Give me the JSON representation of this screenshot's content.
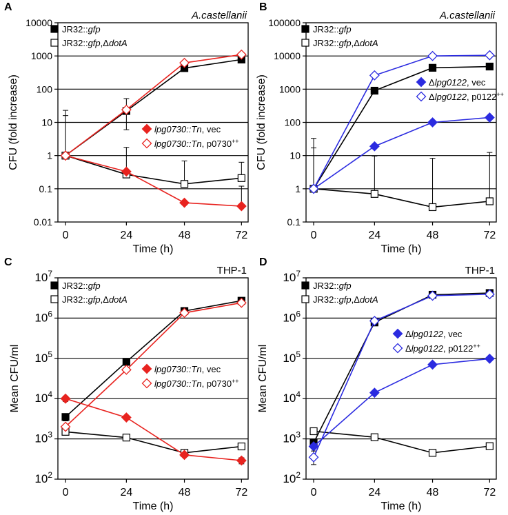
{
  "figure": {
    "description_note": ""
  },
  "chart_data": [
    {
      "type": "line",
      "panel_letter": "A",
      "title": "A.castellanii",
      "xlabel": "Time (h)",
      "ylabel": "CFU (fold increase)",
      "yscale": "log",
      "ylim": [
        0.01,
        10000
      ],
      "x": [
        0,
        24,
        48,
        72
      ],
      "xtick_labels": [
        "0",
        "24",
        "48",
        "72"
      ],
      "ytick_labels": [
        {
          "value": 0.01,
          "text": "0.01"
        },
        {
          "value": 0.1,
          "text": "0.1"
        },
        {
          "value": 1,
          "text": "1"
        },
        {
          "value": 10,
          "text": "10"
        },
        {
          "value": 100,
          "text": "100"
        },
        {
          "value": 1000,
          "text": "1000"
        },
        {
          "value": 10000,
          "text": "10000"
        }
      ],
      "grid_lines": [
        0.1,
        1,
        10,
        100,
        1000
      ],
      "series": [
        {
          "name_parts": [
            {
              "t": "JR32::"
            },
            {
              "t": "gfp",
              "i": true
            }
          ],
          "color": "#000000",
          "marker": "square-filled",
          "values": [
            1,
            22,
            430,
            780
          ],
          "err_up": [
            0,
            30,
            0,
            0
          ],
          "err_down": [
            0,
            16,
            0,
            0
          ]
        },
        {
          "name_parts": [
            {
              "t": "JR32::"
            },
            {
              "t": "gfp",
              "i": true
            },
            {
              "t": ",Δ"
            },
            {
              "t": "dotA",
              "i": true
            }
          ],
          "color": "#000000",
          "marker": "square-open",
          "values": [
            1,
            0.27,
            0.14,
            0.21
          ],
          "err_up": [
            22,
            1.5,
            0.55,
            0.42
          ],
          "err_down": [
            0,
            0,
            0,
            0
          ]
        },
        {
          "name_parts": [
            {
              "t": "lpg0730::Tn",
              "i": true
            },
            {
              "t": ", vec"
            }
          ],
          "color": "#e8231f",
          "marker": "diamond-filled",
          "values": [
            1,
            0.33,
            0.038,
            0.03
          ],
          "err_up": [
            15,
            0,
            0,
            0.09
          ],
          "err_down": [
            0,
            0,
            0,
            0
          ]
        },
        {
          "name_parts": [
            {
              "t": "lpg0730::Tn",
              "i": true
            },
            {
              "t": ", p0730"
            },
            {
              "t": "++",
              "sup": true
            }
          ],
          "color": "#e8231f",
          "marker": "diamond-open",
          "values": [
            1,
            24,
            620,
            1100
          ],
          "err_up": [
            0,
            0,
            0,
            0
          ],
          "err_down": [
            0,
            0,
            0,
            0
          ]
        }
      ]
    },
    {
      "type": "line",
      "panel_letter": "B",
      "title": "A.castellanii",
      "xlabel": "Time (h)",
      "ylabel": "CFU (fold increase)",
      "yscale": "log",
      "ylim": [
        0.1,
        100000
      ],
      "x": [
        0,
        24,
        48,
        72
      ],
      "xtick_labels": [
        "0",
        "24",
        "48",
        "72"
      ],
      "ytick_labels": [
        {
          "value": 0.1,
          "text": "0.1"
        },
        {
          "value": 1,
          "text": "1"
        },
        {
          "value": 10,
          "text": "10"
        },
        {
          "value": 100,
          "text": "100"
        },
        {
          "value": 1000,
          "text": "1000"
        },
        {
          "value": 10000,
          "text": "10000"
        },
        {
          "value": 100000,
          "text": "100000"
        }
      ],
      "grid_lines": [
        1,
        10,
        100,
        1000,
        10000
      ],
      "series": [
        {
          "name_parts": [
            {
              "t": "JR32::"
            },
            {
              "t": "gfp",
              "i": true
            }
          ],
          "color": "#000000",
          "marker": "square-filled",
          "values": [
            1,
            900,
            4400,
            4800
          ],
          "err_up": [
            0,
            0,
            0,
            0
          ],
          "err_down": [
            0,
            0,
            0,
            0
          ]
        },
        {
          "name_parts": [
            {
              "t": "JR32::"
            },
            {
              "t": "gfp",
              "i": true
            },
            {
              "t": ",Δ"
            },
            {
              "t": "dotA",
              "i": true
            }
          ],
          "color": "#000000",
          "marker": "square-open",
          "values": [
            1,
            0.7,
            0.28,
            0.42
          ],
          "err_up": [
            32,
            9,
            8,
            12
          ],
          "err_down": [
            0,
            0,
            0,
            0
          ]
        },
        {
          "name_parts": [
            {
              "t": "Δ"
            },
            {
              "t": "lpg0122",
              "i": true
            },
            {
              "t": ", vec"
            }
          ],
          "color": "#2b2be0",
          "marker": "diamond-filled",
          "values": [
            1,
            19,
            100,
            140
          ],
          "err_up": [
            16,
            0,
            0,
            0
          ],
          "err_down": [
            0,
            0,
            0,
            0
          ]
        },
        {
          "name_parts": [
            {
              "t": "Δ"
            },
            {
              "t": "lpg0122",
              "i": true
            },
            {
              "t": ", p0122"
            },
            {
              "t": "++",
              "sup": true
            }
          ],
          "color": "#2b2be0",
          "marker": "diamond-open",
          "values": [
            1,
            2600,
            10000,
            10500
          ],
          "err_up": [
            0,
            0,
            0,
            0
          ],
          "err_down": [
            0,
            0,
            0,
            0
          ]
        }
      ]
    },
    {
      "type": "line",
      "panel_letter": "C",
      "title": "THP-1",
      "xlabel": "Time (h)",
      "ylabel": "Mean CFU/ml",
      "yscale": "log",
      "ylim": [
        100,
        10000000
      ],
      "x": [
        0,
        24,
        48,
        72
      ],
      "xtick_labels": [
        "0",
        "24",
        "48",
        "72"
      ],
      "ytick_labels": [
        {
          "value": 100,
          "base": "10",
          "exp": "2"
        },
        {
          "value": 1000,
          "base": "10",
          "exp": "3"
        },
        {
          "value": 10000,
          "base": "10",
          "exp": "4"
        },
        {
          "value": 100000,
          "base": "10",
          "exp": "5"
        },
        {
          "value": 1000000,
          "base": "10",
          "exp": "6"
        },
        {
          "value": 10000000,
          "base": "10",
          "exp": "7"
        }
      ],
      "grid_lines": [
        1000,
        10000,
        100000,
        1000000
      ],
      "series": [
        {
          "name_parts": [
            {
              "t": "JR32::"
            },
            {
              "t": "gfp",
              "i": true
            }
          ],
          "color": "#000000",
          "marker": "square-filled",
          "values": [
            3500,
            82000,
            1500000,
            2700000
          ],
          "err_up": [
            700,
            0,
            0,
            0
          ],
          "err_down": [
            700,
            0,
            0,
            0
          ]
        },
        {
          "name_parts": [
            {
              "t": "JR32::"
            },
            {
              "t": "gfp",
              "i": true
            },
            {
              "t": ",Δ"
            },
            {
              "t": "dotA",
              "i": true
            }
          ],
          "color": "#000000",
          "marker": "square-open",
          "values": [
            1500,
            1080,
            450,
            650
          ],
          "err_up": [
            0,
            0,
            0,
            0
          ],
          "err_down": [
            0,
            0,
            0,
            0
          ]
        },
        {
          "name_parts": [
            {
              "t": "lpg0730::Tn",
              "i": true
            },
            {
              "t": ", vec"
            }
          ],
          "color": "#e8231f",
          "marker": "diamond-filled",
          "values": [
            10000,
            3400,
            400,
            290
          ],
          "err_up": [
            1500,
            0,
            0,
            50
          ],
          "err_down": [
            1500,
            0,
            0,
            50
          ]
        },
        {
          "name_parts": [
            {
              "t": "lpg0730::Tn",
              "i": true
            },
            {
              "t": ", p0730"
            },
            {
              "t": "++",
              "sup": true
            }
          ],
          "color": "#e8231f",
          "marker": "diamond-open",
          "values": [
            2000,
            52000,
            1350000,
            2400000
          ],
          "err_up": [
            0,
            0,
            0,
            0
          ],
          "err_down": [
            0,
            0,
            0,
            0
          ]
        }
      ]
    },
    {
      "type": "line",
      "panel_letter": "D",
      "title": "THP-1",
      "xlabel": "Time (h)",
      "ylabel": "Mean CFU/ml",
      "yscale": "log",
      "ylim": [
        100,
        10000000
      ],
      "x": [
        0,
        24,
        48,
        72
      ],
      "xtick_labels": [
        "0",
        "24",
        "48",
        "72"
      ],
      "ytick_labels": [
        {
          "value": 100,
          "base": "10",
          "exp": "2"
        },
        {
          "value": 1000,
          "base": "10",
          "exp": "3"
        },
        {
          "value": 10000,
          "base": "10",
          "exp": "4"
        },
        {
          "value": 100000,
          "base": "10",
          "exp": "5"
        },
        {
          "value": 1000000,
          "base": "10",
          "exp": "6"
        },
        {
          "value": 10000000,
          "base": "10",
          "exp": "7"
        }
      ],
      "grid_lines": [
        1000,
        10000,
        100000,
        1000000
      ],
      "series": [
        {
          "name_parts": [
            {
              "t": "JR32::"
            },
            {
              "t": "gfp",
              "i": true
            }
          ],
          "color": "#000000",
          "marker": "square-filled",
          "values": [
            800,
            780000,
            3800000,
            4200000
          ],
          "err_up": [
            200,
            0,
            0,
            0
          ],
          "err_down": [
            200,
            0,
            0,
            0
          ]
        },
        {
          "name_parts": [
            {
              "t": "JR32::"
            },
            {
              "t": "gfp",
              "i": true
            },
            {
              "t": ",Δ"
            },
            {
              "t": "dotA",
              "i": true
            }
          ],
          "color": "#000000",
          "marker": "square-open",
          "values": [
            1550,
            1100,
            450,
            660
          ],
          "err_up": [
            0,
            0,
            0,
            0
          ],
          "err_down": [
            0,
            0,
            0,
            0
          ]
        },
        {
          "name_parts": [
            {
              "t": "Δ"
            },
            {
              "t": "lpg0122",
              "i": true
            },
            {
              "t": ", vec"
            }
          ],
          "color": "#2b2be0",
          "marker": "diamond-filled",
          "values": [
            650,
            14000,
            70000,
            98000
          ],
          "err_up": [
            0,
            0,
            0,
            0
          ],
          "err_down": [
            0,
            0,
            0,
            0
          ]
        },
        {
          "name_parts": [
            {
              "t": "Δ"
            },
            {
              "t": "lpg0122",
              "i": true
            },
            {
              "t": ", p0122"
            },
            {
              "t": "++",
              "sup": true
            }
          ],
          "color": "#2b2be0",
          "marker": "diamond-open",
          "values": [
            350,
            850000,
            3600000,
            3900000
          ],
          "err_up": [
            150,
            0,
            0,
            0
          ],
          "err_down": [
            120,
            0,
            0,
            0
          ]
        }
      ]
    }
  ]
}
